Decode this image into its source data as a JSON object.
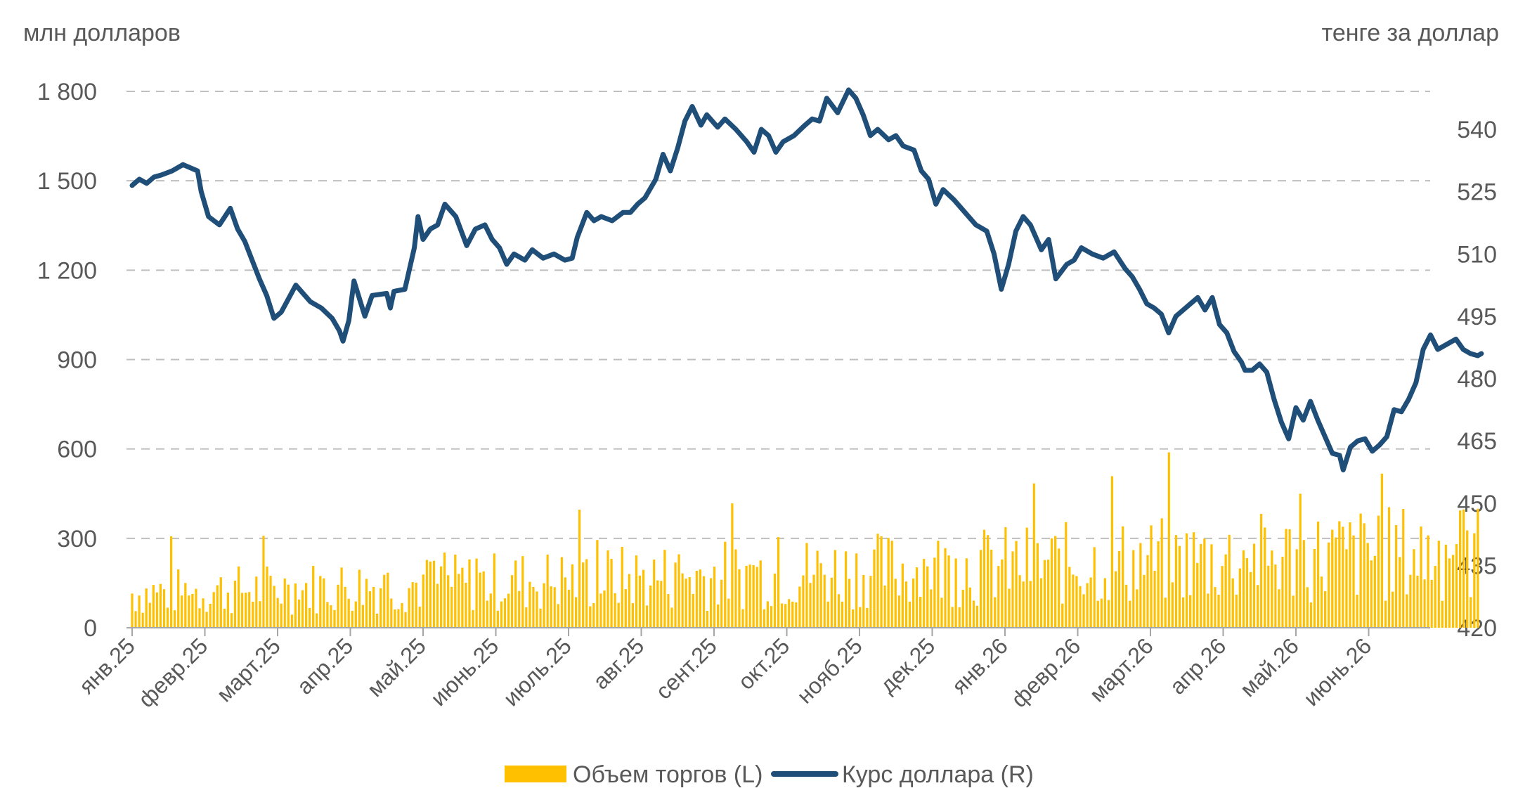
{
  "colors": {
    "volume": "#FFC000",
    "rate": "#1F4E79",
    "grid": "#BFBFBF",
    "text": "#595959"
  },
  "chart_data": {
    "type": "bar+line",
    "left_axis_title": "млн долларов",
    "right_axis_title": "тенге за доллар",
    "left_ylim": [
      0,
      1800
    ],
    "left_ticks": [
      "0",
      "300",
      "600",
      "900",
      "1 200",
      "1 500",
      "1 800"
    ],
    "right_ylim": [
      420,
      550
    ],
    "right_ticks": [
      "420",
      "435",
      "450",
      "465",
      "480",
      "495",
      "510",
      "525",
      "540"
    ],
    "grid": "horizontal dashed",
    "categories": [
      "янв.25",
      "февр.25",
      "март.25",
      "апр.25",
      "май.25",
      "июнь.25",
      "июль.25",
      "авг.25",
      "сент.25",
      "окт.25",
      "нояб.25",
      "дек.25",
      "янв.26",
      "февр.26",
      "март.26",
      "апр.26",
      "май.26",
      "июнь.26"
    ],
    "legend": {
      "position": "bottom",
      "items": [
        "Объем торгов (L)",
        "Курс доллара (R)"
      ]
    },
    "series": [
      {
        "name": "Курс доллара (R)",
        "axis": "right",
        "type": "line",
        "points": [
          [
            0.0,
            526.5
          ],
          [
            0.1,
            528.0
          ],
          [
            0.2,
            527.0
          ],
          [
            0.3,
            528.5
          ],
          [
            0.4,
            529.0
          ],
          [
            0.55,
            530.0
          ],
          [
            0.7,
            531.5
          ],
          [
            0.9,
            530.0
          ],
          [
            0.95,
            525.0
          ],
          [
            1.05,
            519.0
          ],
          [
            1.2,
            517.0
          ],
          [
            1.35,
            521.0
          ],
          [
            1.45,
            516.0
          ],
          [
            1.55,
            513.0
          ],
          [
            1.75,
            504.0
          ],
          [
            1.85,
            500.0
          ],
          [
            1.95,
            494.5
          ],
          [
            2.05,
            496.0
          ],
          [
            2.25,
            502.5
          ],
          [
            2.45,
            498.5
          ],
          [
            2.6,
            497.0
          ],
          [
            2.75,
            494.5
          ],
          [
            2.85,
            491.5
          ],
          [
            2.9,
            489.0
          ],
          [
            2.98,
            494.0
          ],
          [
            3.05,
            503.5
          ],
          [
            3.2,
            495.0
          ],
          [
            3.3,
            500.0
          ],
          [
            3.5,
            500.5
          ],
          [
            3.55,
            497.0
          ],
          [
            3.6,
            501.0
          ],
          [
            3.75,
            501.5
          ],
          [
            3.88,
            511.5
          ],
          [
            3.93,
            519.0
          ],
          [
            4.0,
            513.5
          ],
          [
            4.1,
            516.0
          ],
          [
            4.2,
            517.0
          ],
          [
            4.3,
            522.0
          ],
          [
            4.45,
            519.0
          ],
          [
            4.6,
            512.0
          ],
          [
            4.72,
            516.0
          ],
          [
            4.85,
            517.0
          ],
          [
            4.95,
            513.5
          ],
          [
            5.05,
            511.5
          ],
          [
            5.15,
            507.5
          ],
          [
            5.25,
            510.0
          ],
          [
            5.4,
            508.5
          ],
          [
            5.5,
            511.0
          ],
          [
            5.65,
            509.0
          ],
          [
            5.8,
            510.0
          ],
          [
            5.95,
            508.5
          ],
          [
            6.05,
            509.0
          ],
          [
            6.12,
            514.0
          ],
          [
            6.25,
            520.0
          ],
          [
            6.35,
            518.0
          ],
          [
            6.45,
            519.0
          ],
          [
            6.6,
            518.0
          ],
          [
            6.75,
            520.0
          ],
          [
            6.85,
            520.0
          ],
          [
            6.95,
            522.0
          ],
          [
            7.05,
            523.5
          ],
          [
            7.2,
            528.0
          ],
          [
            7.3,
            534.0
          ],
          [
            7.4,
            530.0
          ],
          [
            7.5,
            535.5
          ],
          [
            7.6,
            542.0
          ],
          [
            7.7,
            545.5
          ],
          [
            7.82,
            541.0
          ],
          [
            7.9,
            543.5
          ],
          [
            8.05,
            540.5
          ],
          [
            8.15,
            542.5
          ],
          [
            8.3,
            540.0
          ],
          [
            8.45,
            537.0
          ],
          [
            8.55,
            534.5
          ],
          [
            8.65,
            540.0
          ],
          [
            8.75,
            538.5
          ],
          [
            8.85,
            534.5
          ],
          [
            8.95,
            537.0
          ],
          [
            9.1,
            538.5
          ],
          [
            9.25,
            541.0
          ],
          [
            9.35,
            542.5
          ],
          [
            9.45,
            542.0
          ],
          [
            9.55,
            547.5
          ],
          [
            9.7,
            544.0
          ],
          [
            9.85,
            549.5
          ],
          [
            9.95,
            547.5
          ],
          [
            10.05,
            543.5
          ],
          [
            10.15,
            538.5
          ],
          [
            10.25,
            540.0
          ],
          [
            10.4,
            537.5
          ],
          [
            10.5,
            538.5
          ],
          [
            10.6,
            536.0
          ],
          [
            10.75,
            535.0
          ],
          [
            10.85,
            530.0
          ],
          [
            10.95,
            528.0
          ],
          [
            11.05,
            522.0
          ],
          [
            11.15,
            525.5
          ],
          [
            11.3,
            523.0
          ],
          [
            11.45,
            520.0
          ],
          [
            11.6,
            517.0
          ],
          [
            11.75,
            515.5
          ],
          [
            11.85,
            510.0
          ],
          [
            11.95,
            501.5
          ],
          [
            12.05,
            507.5
          ],
          [
            12.15,
            515.5
          ],
          [
            12.25,
            519.0
          ],
          [
            12.35,
            517.0
          ],
          [
            12.5,
            511.0
          ],
          [
            12.6,
            513.5
          ],
          [
            12.7,
            504.0
          ],
          [
            12.85,
            507.5
          ],
          [
            12.95,
            508.5
          ],
          [
            13.05,
            511.5
          ],
          [
            13.2,
            510.0
          ],
          [
            13.35,
            509.0
          ],
          [
            13.5,
            510.5
          ],
          [
            13.65,
            506.5
          ],
          [
            13.75,
            504.5
          ],
          [
            13.85,
            501.5
          ],
          [
            13.95,
            498.0
          ],
          [
            14.05,
            497.0
          ],
          [
            14.15,
            495.5
          ],
          [
            14.25,
            491.0
          ],
          [
            14.35,
            495.0
          ],
          [
            14.45,
            496.5
          ],
          [
            14.55,
            498.0
          ],
          [
            14.65,
            499.5
          ],
          [
            14.75,
            496.5
          ],
          [
            14.85,
            499.5
          ],
          [
            14.95,
            493.0
          ],
          [
            15.05,
            491.0
          ],
          [
            15.15,
            486.5
          ],
          [
            15.25,
            484.0
          ],
          [
            15.3,
            482.0
          ],
          [
            15.4,
            482.0
          ],
          [
            15.5,
            483.5
          ],
          [
            15.6,
            481.5
          ],
          [
            15.7,
            475.0
          ],
          [
            15.8,
            469.5
          ],
          [
            15.9,
            465.5
          ],
          [
            16.0,
            473.0
          ],
          [
            16.1,
            470.0
          ],
          [
            16.2,
            474.5
          ],
          [
            16.3,
            470.0
          ],
          [
            16.4,
            466.0
          ],
          [
            16.5,
            462.0
          ],
          [
            16.6,
            461.5
          ],
          [
            16.65,
            458.0
          ],
          [
            16.75,
            463.5
          ],
          [
            16.85,
            465.0
          ],
          [
            16.95,
            465.5
          ],
          [
            17.05,
            462.5
          ],
          [
            17.15,
            464.0
          ],
          [
            17.25,
            466.0
          ],
          [
            17.35,
            472.5
          ],
          [
            17.45,
            472.0
          ],
          [
            17.55,
            475.0
          ],
          [
            17.65,
            479.0
          ],
          [
            17.75,
            487.0
          ],
          [
            17.85,
            490.5
          ],
          [
            17.95,
            487.0
          ],
          [
            18.05,
            488.0
          ],
          [
            18.2,
            489.5
          ],
          [
            18.3,
            487.0
          ],
          [
            18.4,
            486.0
          ],
          [
            18.5,
            485.5
          ],
          [
            18.55,
            486.0
          ]
        ]
      }
    ]
  }
}
